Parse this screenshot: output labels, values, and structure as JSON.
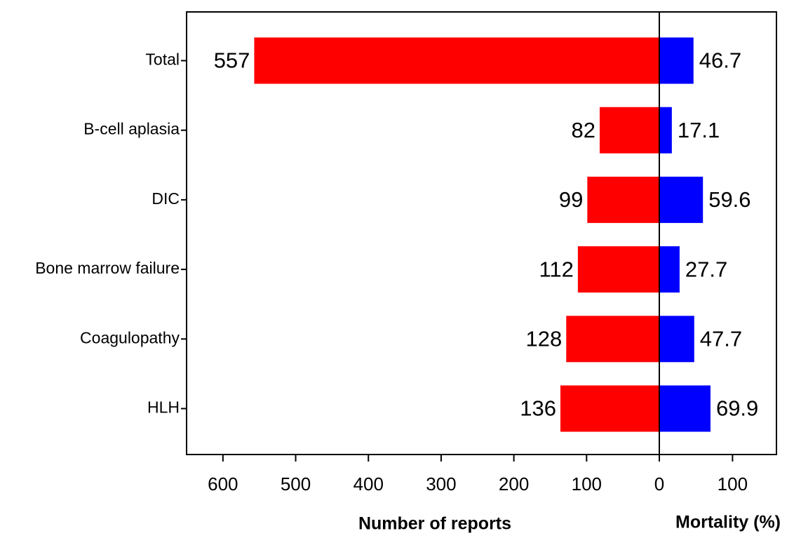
{
  "chart_data": {
    "type": "butterfly",
    "categories": [
      "Total",
      "B-cell aplasia",
      "DIC",
      "Bone marrow failure",
      "Coagulopathy",
      "HLH"
    ],
    "series": [
      {
        "name": "Number of reports",
        "color": "#ff0000",
        "axis": "x",
        "values": [
          557,
          82,
          99,
          112,
          128,
          136
        ]
      },
      {
        "name": "Mortality (%)",
        "color": "#0000ff",
        "axis": "x2",
        "values": [
          46.7,
          17.1,
          59.6,
          27.7,
          47.7,
          69.9
        ]
      }
    ],
    "xlim": [
      0,
      650
    ],
    "xticks": [
      0,
      100,
      200,
      300,
      400,
      500,
      600
    ],
    "x2lim": [
      0,
      160
    ],
    "x2ticks": [
      100
    ]
  }
}
